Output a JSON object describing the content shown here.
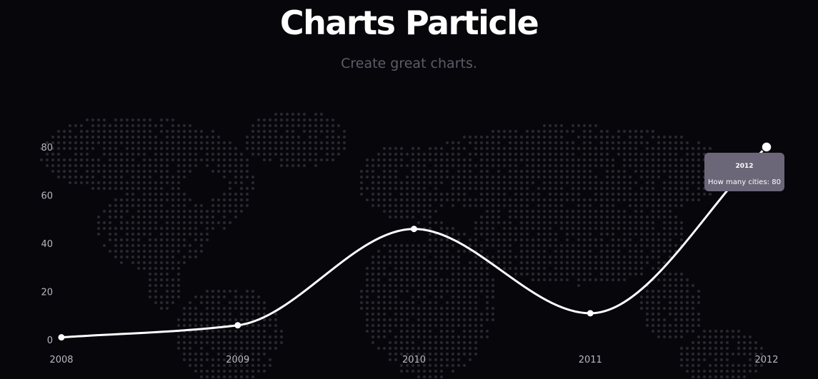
{
  "header": {
    "title": "Charts Particle",
    "subtitle": "Create great charts."
  },
  "chart_data": {
    "type": "line",
    "categories": [
      "2008",
      "2009",
      "2010",
      "2011",
      "2012"
    ],
    "series": [
      {
        "values": [
          1,
          6,
          46,
          11,
          80
        ]
      }
    ],
    "y_ticks": [
      "0",
      "20",
      "40",
      "60",
      "80"
    ],
    "ylim": [
      0,
      80
    ],
    "grid": false,
    "smooth": true,
    "background": "world map made of dots",
    "line_color": "#ffffff",
    "tooltip": {
      "title": "2012",
      "body": "How many cities: 80"
    }
  },
  "colors": {
    "background": "#07060b",
    "title": "#ffffff",
    "subtitle": "#5e5c66",
    "axis_labels": "#b9b7c0",
    "map_dots": "#2a2930",
    "tooltip_bg": "#6b6678"
  }
}
